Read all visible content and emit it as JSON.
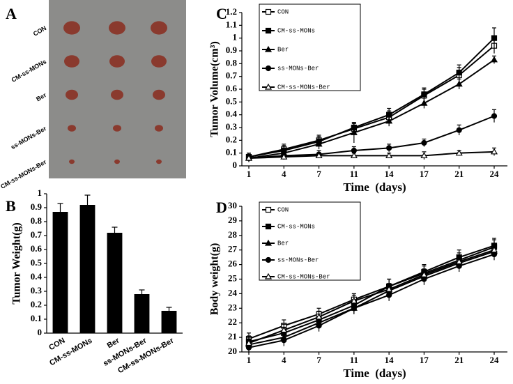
{
  "photo": {
    "panel_label": "A",
    "rows": [
      "CON",
      "CM-ss-MONs",
      "Ber",
      "ss-MONs-Ber",
      "CM-ss-MONs-Ber"
    ]
  },
  "chart_data": [
    {
      "type": "bar",
      "panel_label": "B",
      "ylabel": "Tumor Weight(g)",
      "color": "#000000",
      "categories": [
        "CON",
        "CM-ss-MONs",
        "Ber",
        "ss-MONs-Ber",
        "CM-ss-MONs-Ber"
      ],
      "values": [
        0.87,
        0.92,
        0.72,
        0.28,
        0.16
      ],
      "errors": [
        0.06,
        0.07,
        0.04,
        0.03,
        0.025
      ],
      "ylim": [
        0,
        1
      ],
      "yticks": [
        0,
        0.1,
        0.2,
        0.3,
        0.4,
        0.5,
        0.6,
        0.7,
        0.8,
        0.9,
        1
      ]
    },
    {
      "type": "line",
      "panel_label": "C",
      "ylabel": "Tumor Volume(cm³)",
      "xlabel": "Time  (days)",
      "legend": "upper left",
      "categories": [
        "1",
        "4",
        "7",
        "11",
        "14",
        "17",
        "21",
        "24"
      ],
      "series": [
        {
          "name": "CON",
          "color": "#000000",
          "marker": "square-open",
          "values": [
            0.07,
            0.13,
            0.2,
            0.29,
            0.38,
            0.55,
            0.71,
            0.94
          ],
          "errors": [
            0.03,
            0.04,
            0.04,
            0.04,
            0.05,
            0.05,
            0.06,
            0.06
          ]
        },
        {
          "name": "CM-ss-MONs",
          "color": "#000000",
          "marker": "square",
          "values": [
            0.07,
            0.12,
            0.19,
            0.3,
            0.4,
            0.56,
            0.73,
            1.0
          ],
          "errors": [
            0.03,
            0.04,
            0.04,
            0.04,
            0.05,
            0.05,
            0.06,
            0.08
          ]
        },
        {
          "name": "Ber",
          "color": "#000000",
          "marker": "triangle",
          "values": [
            0.06,
            0.1,
            0.17,
            0.26,
            0.35,
            0.49,
            0.64,
            0.83
          ],
          "errors": [
            0.03,
            0.03,
            0.04,
            0.08,
            0.04,
            0.04,
            0.04,
            0.03
          ]
        },
        {
          "name": "ss-MONs-Ber",
          "color": "#000000",
          "marker": "circle",
          "values": [
            0.06,
            0.08,
            0.09,
            0.12,
            0.14,
            0.18,
            0.28,
            0.39
          ],
          "errors": [
            0.03,
            0.03,
            0.03,
            0.03,
            0.03,
            0.03,
            0.04,
            0.05
          ]
        },
        {
          "name": "CM-ss-MONs-Ber",
          "color": "#000000",
          "marker": "triangle-open",
          "values": [
            0.06,
            0.07,
            0.08,
            0.08,
            0.08,
            0.08,
            0.1,
            0.11
          ],
          "errors": [
            0.02,
            0.02,
            0.02,
            0.02,
            0.02,
            0.03,
            0.02,
            0.03
          ]
        }
      ],
      "ylim": [
        0,
        1.2
      ],
      "yticks": [
        0,
        0.1,
        0.2,
        0.3,
        0.4,
        0.5,
        0.6,
        0.7,
        0.8,
        0.9,
        1,
        1.1,
        1.2
      ]
    },
    {
      "type": "line",
      "panel_label": "D",
      "ylabel": "Body weight(g)",
      "xlabel": "Time  (days)",
      "legend": "upper left",
      "categories": [
        "1",
        "4",
        "7",
        "11",
        "14",
        "17",
        "21",
        "24"
      ],
      "series": [
        {
          "name": "CON",
          "color": "#000000",
          "marker": "square-open",
          "values": [
            20.9,
            21.8,
            22.6,
            23.6,
            24.5,
            25.4,
            26.3,
            27.2
          ],
          "errors": [
            0.4,
            0.4,
            0.4,
            0.4,
            0.5,
            0.5,
            0.5,
            0.5
          ]
        },
        {
          "name": "CM-ss-MONs",
          "color": "#000000",
          "marker": "square",
          "values": [
            20.7,
            21.3,
            22.2,
            23.2,
            24.5,
            25.5,
            26.5,
            27.3
          ],
          "errors": [
            0.4,
            0.4,
            0.4,
            0.4,
            0.5,
            0.5,
            0.5,
            0.5
          ]
        },
        {
          "name": "Ber",
          "color": "#000000",
          "marker": "triangle",
          "values": [
            20.5,
            21.0,
            22.0,
            23.0,
            24.2,
            25.2,
            26.1,
            26.9
          ],
          "errors": [
            0.4,
            0.4,
            0.4,
            0.4,
            0.4,
            0.4,
            0.4,
            0.4
          ]
        },
        {
          "name": "ss-MONs-Ber",
          "color": "#000000",
          "marker": "circle",
          "values": [
            20.3,
            20.8,
            21.8,
            23.0,
            23.9,
            25.0,
            25.9,
            26.7
          ],
          "errors": [
            0.4,
            0.4,
            0.4,
            0.4,
            0.4,
            0.4,
            0.4,
            0.4
          ]
        },
        {
          "name": "CM-ss-MONs-Ber",
          "color": "#000000",
          "marker": "triangle-open",
          "values": [
            20.6,
            21.5,
            22.4,
            23.5,
            24.3,
            25.3,
            26.2,
            27.0
          ],
          "errors": [
            0.4,
            0.4,
            0.4,
            0.4,
            0.4,
            0.4,
            0.4,
            0.4
          ]
        }
      ],
      "ylim": [
        20,
        30
      ],
      "yticks": [
        20,
        21,
        22,
        23,
        24,
        25,
        26,
        27,
        28,
        29,
        30
      ]
    }
  ]
}
